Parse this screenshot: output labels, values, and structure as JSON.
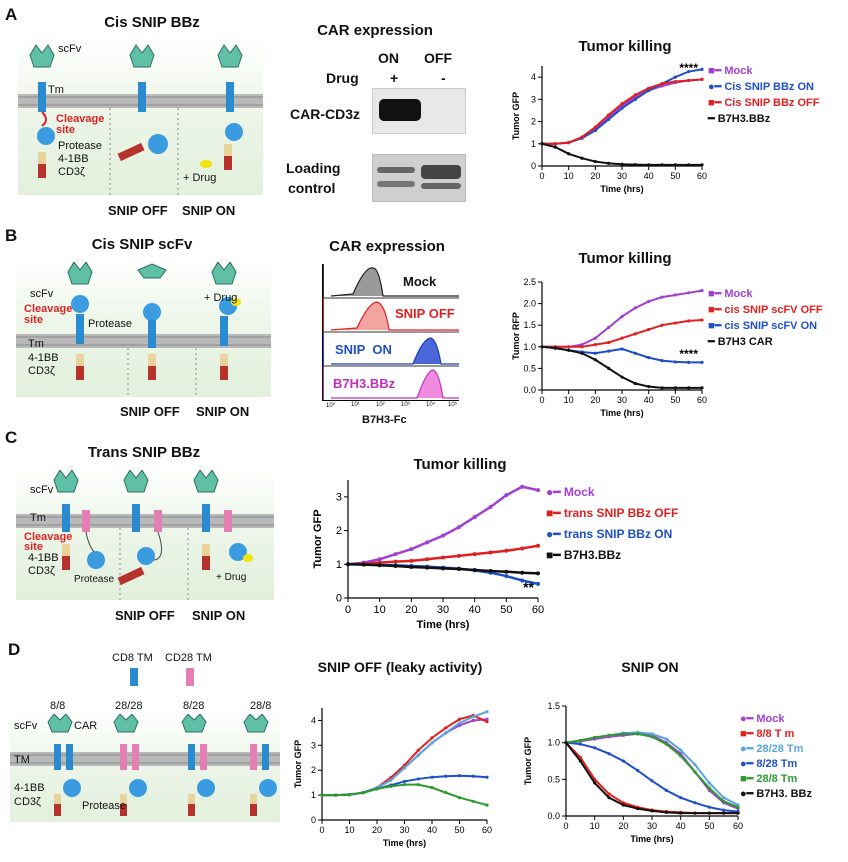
{
  "panelA": {
    "letter": "A",
    "schematic": {
      "title": "Cis SNIP BBz",
      "labels": [
        "scFv",
        "Tm",
        "Cleavage site",
        "Protease",
        "4-1BB",
        "CD3ζ",
        "+ Drug"
      ],
      "bottom_labels": [
        "SNIP OFF",
        "SNIP ON"
      ]
    },
    "blot": {
      "title": "CAR expression",
      "cols": [
        "ON",
        "OFF"
      ],
      "drug_label": "Drug",
      "drug_values": [
        "+",
        "-"
      ],
      "band_label": "CAR-CD3z",
      "loading_label_1": "Loading",
      "loading_label_2": "control"
    }
  },
  "panelB": {
    "letter": "B",
    "schematic": {
      "title": "Cis SNIP scFv",
      "labels": [
        "scFv",
        "Cleavage site",
        "Protease",
        "+ Drug",
        "Tm",
        "4-1BB",
        "CD3ζ"
      ],
      "bottom_labels": [
        "SNIP OFF",
        "SNIP ON"
      ]
    },
    "flow": {
      "title": "CAR expression",
      "rows": [
        "Mock",
        "SNIP OFF",
        "SNIP  ON",
        "B7H3.BBz"
      ],
      "xlabel": "B7H3-Fc",
      "ticks": [
        "10⁰",
        "10¹",
        "10²",
        "10³",
        "10⁴",
        "10⁵"
      ]
    }
  },
  "panelC": {
    "letter": "C",
    "schematic": {
      "title": "Trans SNIP BBz",
      "labels": [
        "scFv",
        "Tm",
        "Cleavage site",
        "4-1BB",
        "CD3ζ",
        "Protease",
        "+ Drug"
      ],
      "bottom_labels": [
        "SNIP OFF",
        "SNIP ON"
      ]
    }
  },
  "panelD": {
    "letter": "D",
    "schematic": {
      "tm_labels": [
        "CD8 TM",
        "CD28 TM"
      ],
      "construct_labels": [
        "8/8",
        "28/28",
        "8/28",
        "28/8"
      ],
      "labels": [
        "scFv",
        "CAR",
        "TM",
        "4-1BB",
        "CD3ζ",
        "Protease"
      ]
    }
  },
  "colors": {
    "mock": "#a23fd1",
    "off": "#e02020",
    "on": "#1f4fc7",
    "ctrl": "#111111",
    "tm2828": "#5aa5de",
    "tm288": "#2e9a2e"
  },
  "chart_data": [
    {
      "id": "chartA",
      "type": "line",
      "title": "Tumor killing",
      "xlabel": "Time  (hrs)",
      "ylabel": "Tumor GFP",
      "xlim": [
        0,
        60
      ],
      "ylim": [
        0,
        4.5
      ],
      "xticks": [
        0,
        10,
        20,
        30,
        40,
        50,
        60
      ],
      "yticks": [
        0,
        1,
        2,
        3,
        4
      ],
      "annotation": "****",
      "x": [
        0,
        5,
        10,
        15,
        20,
        25,
        30,
        35,
        40,
        45,
        50,
        55,
        60
      ],
      "series": [
        {
          "name": "Mock",
          "color": "#a23fd1",
          "values": [
            1,
            1,
            1.05,
            1.3,
            1.7,
            2.2,
            2.7,
            3.1,
            3.4,
            3.6,
            3.75,
            3.85,
            3.9
          ]
        },
        {
          "name": "Cis SNIP BBz ON",
          "color": "#1f4fc7",
          "values": [
            1,
            1,
            1.05,
            1.25,
            1.6,
            2.1,
            2.6,
            3.0,
            3.4,
            3.7,
            4.0,
            4.25,
            4.35
          ]
        },
        {
          "name": "Cis SNIP BBz  OFF",
          "color": "#e02020",
          "values": [
            1,
            1,
            1.05,
            1.3,
            1.75,
            2.3,
            2.8,
            3.2,
            3.5,
            3.7,
            3.8,
            3.85,
            3.9
          ]
        },
        {
          "name": "B7H3.BBz",
          "color": "#111111",
          "values": [
            1,
            0.85,
            0.55,
            0.35,
            0.2,
            0.12,
            0.08,
            0.06,
            0.05,
            0.05,
            0.05,
            0.05,
            0.05
          ]
        }
      ]
    },
    {
      "id": "chartB",
      "type": "line",
      "title": "Tumor killing",
      "xlabel": "Time (hrs)",
      "ylabel": "Tumor RFP",
      "xlim": [
        0,
        60
      ],
      "ylim": [
        0,
        2.5
      ],
      "xticks": [
        0,
        10,
        20,
        30,
        40,
        50,
        60
      ],
      "yticks": [
        0.0,
        0.5,
        1.0,
        1.5,
        2.0,
        2.5
      ],
      "ytick_labels": [
        "0.0",
        "0.5",
        "1.0",
        "1.5",
        "2.0",
        "2.5"
      ],
      "annotation": "****",
      "x": [
        0,
        5,
        10,
        15,
        20,
        25,
        30,
        35,
        40,
        45,
        50,
        55,
        60
      ],
      "series": [
        {
          "name": "Mock",
          "color": "#a23fd1",
          "values": [
            1,
            1,
            1,
            1.05,
            1.2,
            1.45,
            1.7,
            1.9,
            2.05,
            2.15,
            2.2,
            2.25,
            2.3
          ]
        },
        {
          "name": "cis SNIP scFV OFF",
          "color": "#e02020",
          "values": [
            1,
            1,
            1,
            1,
            1.05,
            1.1,
            1.2,
            1.3,
            1.4,
            1.5,
            1.55,
            1.6,
            1.62
          ]
        },
        {
          "name": "cis SNIP scFV ON",
          "color": "#1f4fc7",
          "values": [
            1,
            0.97,
            0.92,
            0.88,
            0.85,
            0.9,
            0.95,
            0.85,
            0.75,
            0.68,
            0.65,
            0.64,
            0.64
          ]
        },
        {
          "name": "B7H3 CAR",
          "color": "#111111",
          "values": [
            1,
            0.97,
            0.92,
            0.85,
            0.7,
            0.5,
            0.3,
            0.15,
            0.08,
            0.05,
            0.05,
            0.05,
            0.05
          ]
        }
      ]
    },
    {
      "id": "chartC",
      "type": "line",
      "title": "Tumor killing",
      "xlabel": "Time (hrs)",
      "ylabel": "Tumor GFP",
      "xlim": [
        0,
        60
      ],
      "ylim": [
        0,
        3.5
      ],
      "xticks": [
        0,
        10,
        20,
        30,
        40,
        50,
        60
      ],
      "yticks": [
        0,
        1,
        2,
        3
      ],
      "annotation": "**",
      "x": [
        0,
        5,
        10,
        15,
        20,
        25,
        30,
        35,
        40,
        45,
        50,
        55,
        60
      ],
      "series": [
        {
          "name": "Mock",
          "color": "#a23fd1",
          "values": [
            1,
            1.05,
            1.15,
            1.3,
            1.45,
            1.65,
            1.85,
            2.1,
            2.4,
            2.7,
            3.05,
            3.3,
            3.2
          ]
        },
        {
          "name": "trans  SNIP BBz OFF",
          "color": "#e02020",
          "values": [
            1,
            1.02,
            1.05,
            1.08,
            1.1,
            1.15,
            1.2,
            1.25,
            1.3,
            1.35,
            1.4,
            1.47,
            1.55
          ]
        },
        {
          "name": "trans SNIP BBz ON",
          "color": "#1f4fc7",
          "values": [
            1,
            1,
            0.98,
            0.97,
            0.95,
            0.93,
            0.9,
            0.87,
            0.82,
            0.75,
            0.65,
            0.52,
            0.42
          ]
        },
        {
          "name": "B7H3.BBz",
          "color": "#111111",
          "values": [
            1,
            0.99,
            0.97,
            0.95,
            0.92,
            0.9,
            0.88,
            0.86,
            0.83,
            0.8,
            0.78,
            0.75,
            0.73
          ]
        }
      ]
    },
    {
      "id": "chartD1",
      "type": "line",
      "title": "SNIP OFF (leaky activity)",
      "xlabel": "Time (hrs)",
      "ylabel": "Tumor GFP",
      "xlim": [
        0,
        60
      ],
      "ylim": [
        0,
        4.5
      ],
      "xticks": [
        0,
        10,
        20,
        30,
        40,
        50,
        60
      ],
      "yticks": [
        0,
        1,
        2,
        3,
        4
      ],
      "x": [
        0,
        5,
        10,
        15,
        20,
        25,
        30,
        35,
        40,
        45,
        50,
        55,
        60
      ],
      "series": [
        {
          "name": "Mock",
          "color": "#a23fd1",
          "values": [
            1,
            1,
            1.02,
            1.1,
            1.3,
            1.6,
            2.1,
            2.6,
            3.1,
            3.5,
            3.8,
            4.0,
            4.05
          ]
        },
        {
          "name": "8/8 Tm",
          "color": "#e02020",
          "values": [
            1,
            1,
            1.02,
            1.1,
            1.3,
            1.7,
            2.2,
            2.8,
            3.3,
            3.7,
            4.05,
            4.2,
            3.95
          ]
        },
        {
          "name": "28/28 Tm",
          "color": "#5aa5de",
          "values": [
            1,
            1,
            1.02,
            1.1,
            1.3,
            1.6,
            2.1,
            2.6,
            3.1,
            3.5,
            3.9,
            4.15,
            4.35
          ]
        },
        {
          "name": "8/28 Tm",
          "color": "#1f4fc7",
          "values": [
            1,
            1,
            1.02,
            1.1,
            1.25,
            1.4,
            1.55,
            1.65,
            1.72,
            1.76,
            1.78,
            1.76,
            1.72
          ]
        },
        {
          "name": "28/8 Tm",
          "color": "#2e9a2e",
          "values": [
            1,
            1,
            1.02,
            1.1,
            1.25,
            1.35,
            1.42,
            1.42,
            1.3,
            1.1,
            0.9,
            0.75,
            0.6
          ]
        }
      ]
    },
    {
      "id": "chartD2",
      "type": "line",
      "title": "SNIP ON",
      "xlabel": "Time (hrs)",
      "ylabel": "Tumor GFP",
      "xlim": [
        0,
        60
      ],
      "ylim": [
        0,
        1.5
      ],
      "xticks": [
        0,
        10,
        20,
        30,
        40,
        50,
        60
      ],
      "yticks": [
        0.0,
        0.5,
        1.0,
        1.5
      ],
      "ytick_labels": [
        "0.0",
        "0.5",
        "1.0",
        "1.5"
      ],
      "x": [
        0,
        5,
        10,
        15,
        20,
        25,
        30,
        35,
        40,
        45,
        50,
        55,
        60
      ],
      "series": [
        {
          "name": "Mock",
          "color": "#a23fd1",
          "values": [
            1,
            1.02,
            1.05,
            1.08,
            1.1,
            1.12,
            1.1,
            1.0,
            0.85,
            0.6,
            0.35,
            0.18,
            0.1
          ]
        },
        {
          "name": "8/8 T m",
          "color": "#e02020",
          "values": [
            1,
            0.8,
            0.5,
            0.3,
            0.18,
            0.12,
            0.08,
            0.06,
            0.05,
            0.04,
            0.04,
            0.04,
            0.04
          ]
        },
        {
          "name": "28/28 Tm",
          "color": "#5aa5de",
          "values": [
            1,
            1.03,
            1.07,
            1.1,
            1.13,
            1.14,
            1.12,
            1.05,
            0.9,
            0.7,
            0.45,
            0.25,
            0.15
          ]
        },
        {
          "name": "8/28  Tm",
          "color": "#1f4fc7",
          "values": [
            1,
            0.98,
            0.93,
            0.85,
            0.75,
            0.62,
            0.48,
            0.35,
            0.25,
            0.18,
            0.12,
            0.08,
            0.06
          ]
        },
        {
          "name": "28/8  Tm",
          "color": "#2e9a2e",
          "values": [
            1,
            1.03,
            1.07,
            1.1,
            1.12,
            1.12,
            1.08,
            0.98,
            0.82,
            0.6,
            0.38,
            0.2,
            0.12
          ]
        },
        {
          "name": "B7H3. BBz",
          "color": "#111111",
          "values": [
            1,
            0.75,
            0.45,
            0.25,
            0.15,
            0.1,
            0.07,
            0.05,
            0.04,
            0.04,
            0.04,
            0.04,
            0.04
          ]
        }
      ]
    }
  ]
}
